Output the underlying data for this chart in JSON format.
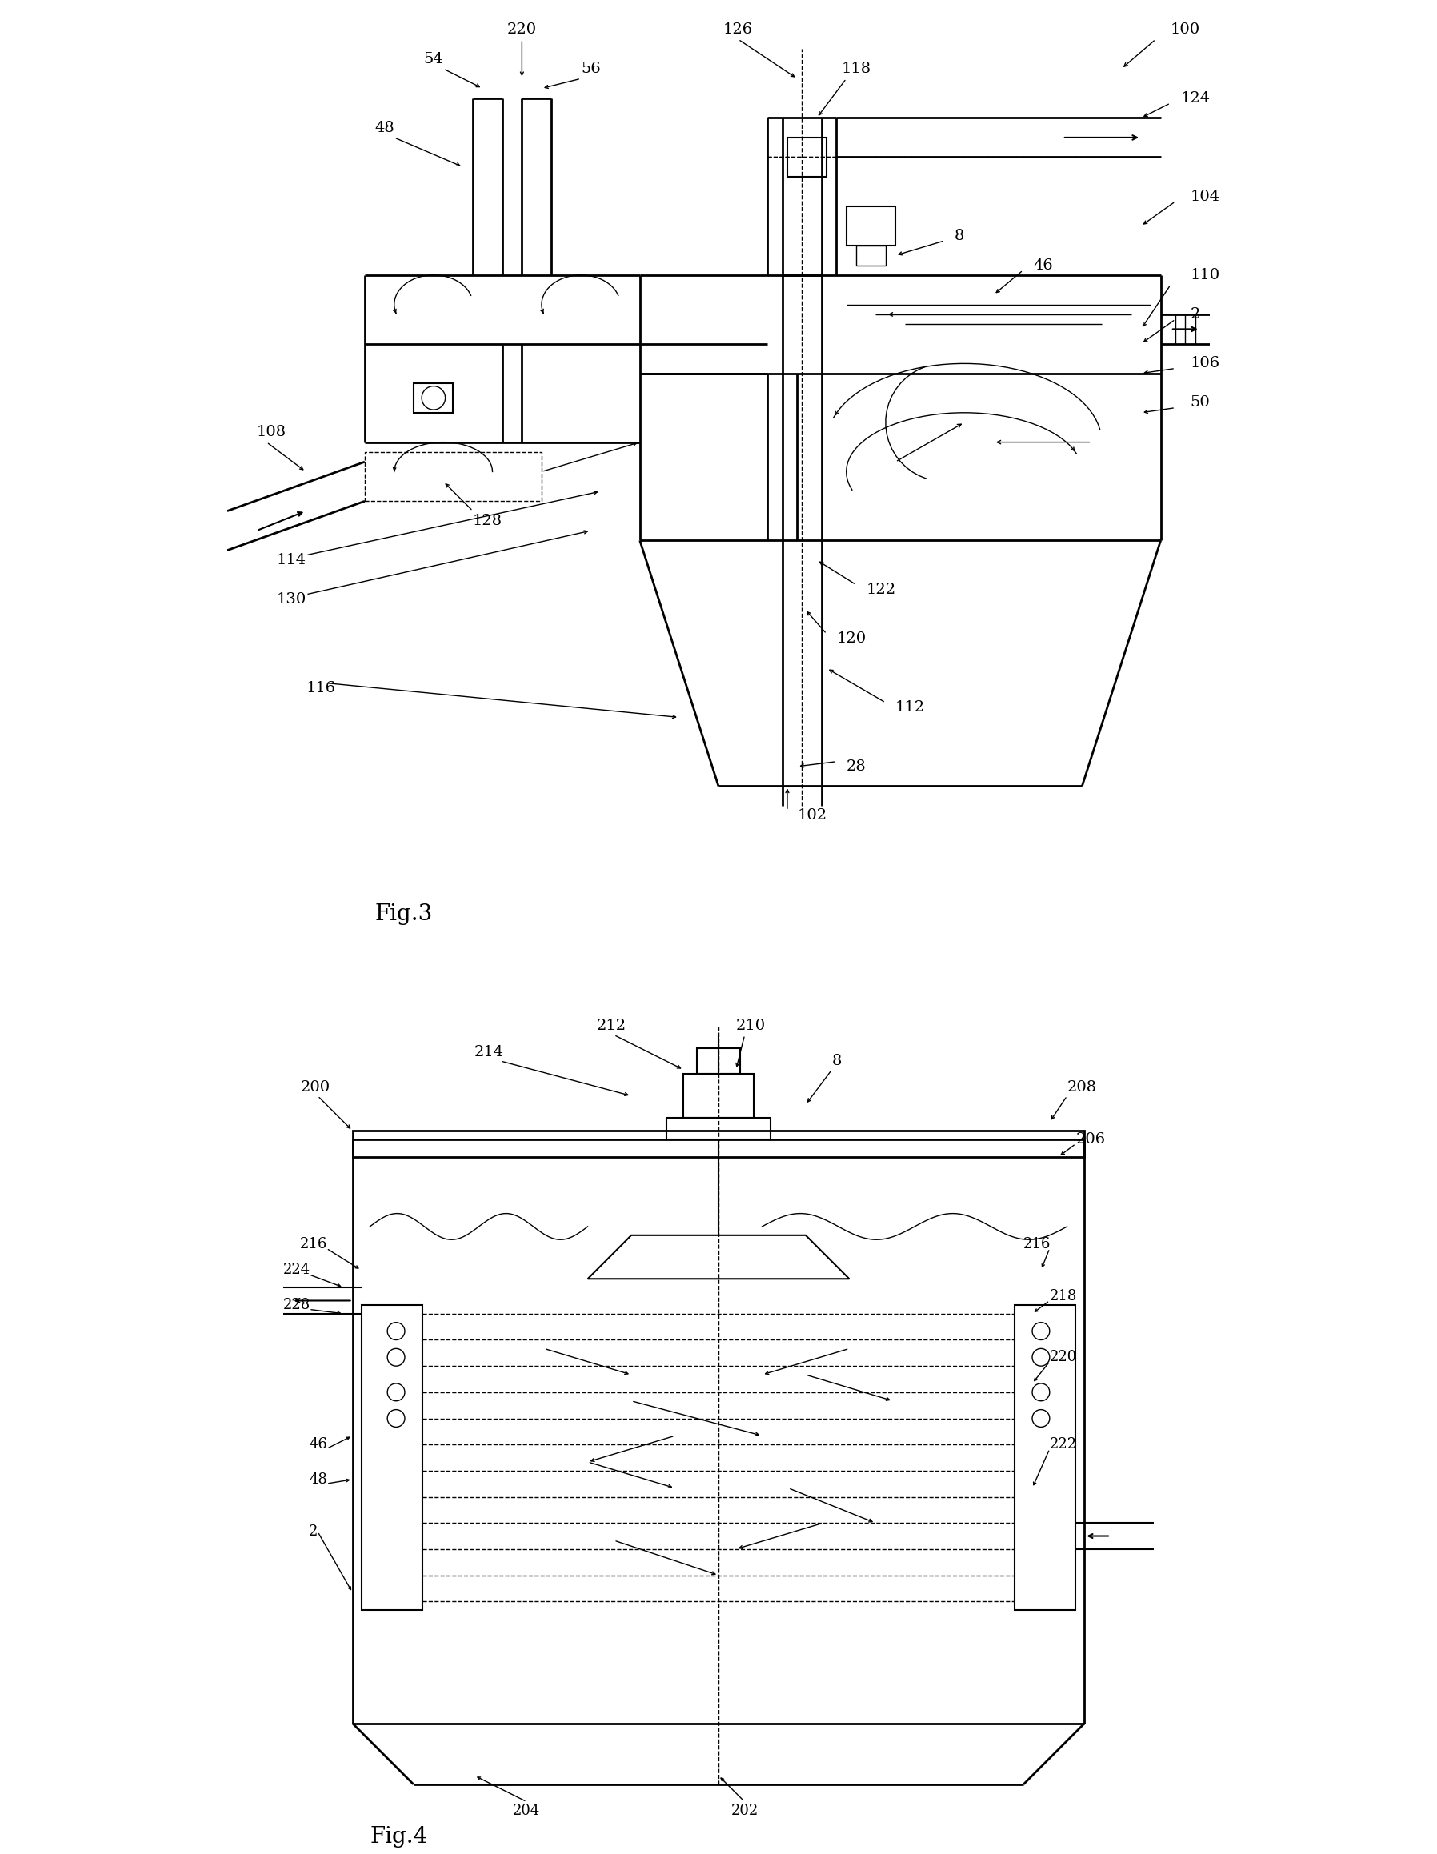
{
  "background_color": "#ffffff",
  "line_color": "#000000",
  "fig3_title": "Fig.3",
  "fig4_title": "Fig.4",
  "lw_main": 2.0,
  "lw_med": 1.5,
  "lw_thin": 1.0,
  "fontsize_label": 14,
  "fontsize_title": 20
}
